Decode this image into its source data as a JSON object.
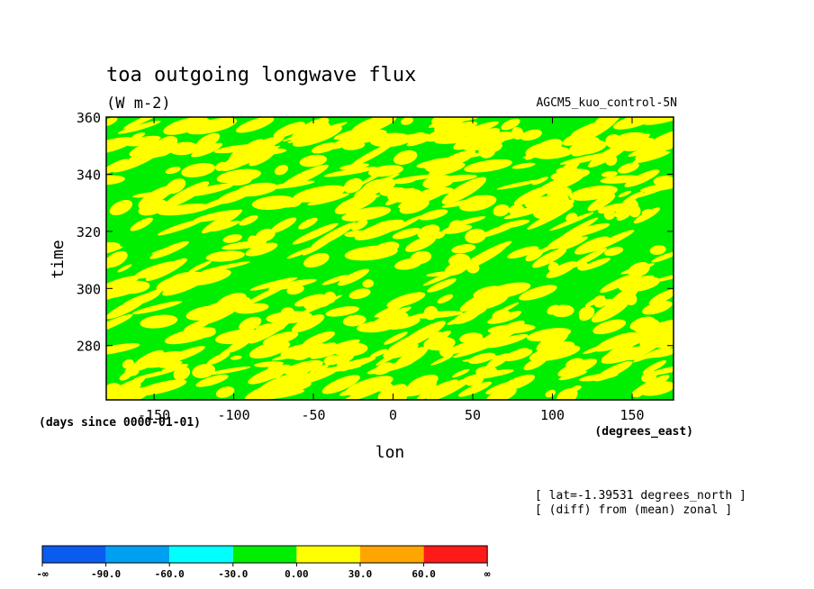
{
  "chart_data": {
    "type": "heatmap",
    "title": "toa outgoing longwave flux",
    "subtitle": "(W m-2)",
    "run_label": "AGCM5_kuo_control-5N",
    "xlabel": "lon",
    "ylabel": "time",
    "x_units": "(degrees_east)",
    "y_units": "(days since 0000-01-01)",
    "xlim": [
      -180,
      176
    ],
    "ylim": [
      261,
      360
    ],
    "x_ticks": [
      -150,
      -100,
      -50,
      0,
      50,
      100,
      150
    ],
    "y_ticks": [
      280,
      300,
      320,
      340,
      360
    ],
    "annotations": [
      "[ lat=-1.39531 degrees_north ]",
      "[ (diff) from (mean) zonal ]"
    ],
    "field_description": "Hovmoller diagram of zonal anomaly of OLR; values mostly between -30 and 30 (green = -30 to 0, yellow = 0 to 30), patchy eastward-tilted streaks",
    "colorbar": {
      "levels": [
        "-∞",
        "-90.0",
        "-60.0",
        "-30.0",
        "0.00",
        "30.0",
        "60.0",
        "∞"
      ],
      "colors": [
        "#0a5cf0",
        "#00a0f0",
        "#00ffff",
        "#00ee00",
        "#ffff00",
        "#ffa500",
        "#ff1a1a"
      ]
    },
    "grid": false
  }
}
